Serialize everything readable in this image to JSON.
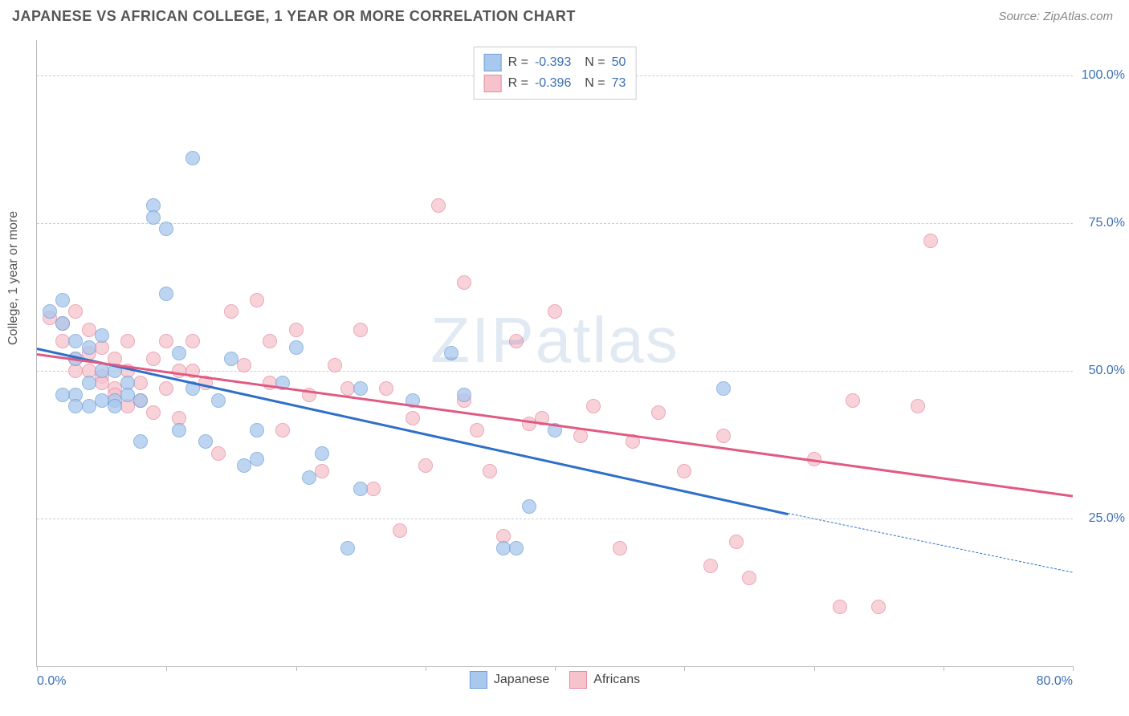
{
  "header": {
    "title": "JAPANESE VS AFRICAN COLLEGE, 1 YEAR OR MORE CORRELATION CHART",
    "source": "Source: ZipAtlas.com"
  },
  "watermark": "ZIPatlas",
  "chart": {
    "type": "scatter",
    "ylabel": "College, 1 year or more",
    "xlim": [
      0,
      80
    ],
    "ylim": [
      0,
      106
    ],
    "xticks": [
      0,
      10,
      20,
      30,
      40,
      50,
      60,
      70,
      80
    ],
    "xtick_labels": {
      "0": "0.0%",
      "80": "80.0%"
    },
    "yticks": [
      25,
      50,
      75,
      100
    ],
    "ytick_labels": {
      "25": "25.0%",
      "50": "50.0%",
      "75": "75.0%",
      "100": "100.0%"
    },
    "grid_color": "#cccccc",
    "background_color": "#ffffff",
    "series": {
      "japanese": {
        "label": "Japanese",
        "fill_color": "#a9c8ee",
        "stroke_color": "#6fa0d8",
        "line_color": "#2e6fc9",
        "R": "-0.393",
        "N": "50",
        "points": [
          [
            1,
            60
          ],
          [
            2,
            62
          ],
          [
            2,
            58
          ],
          [
            3,
            55
          ],
          [
            3,
            52
          ],
          [
            3,
            46
          ],
          [
            4,
            54
          ],
          [
            4,
            48
          ],
          [
            5,
            56
          ],
          [
            5,
            50
          ],
          [
            6,
            45
          ],
          [
            6,
            44
          ],
          [
            7,
            48
          ],
          [
            7,
            46
          ],
          [
            8,
            38
          ],
          [
            9,
            78
          ],
          [
            9,
            76
          ],
          [
            10,
            74
          ],
          [
            10,
            63
          ],
          [
            11,
            53
          ],
          [
            11,
            40
          ],
          [
            12,
            86
          ],
          [
            12,
            47
          ],
          [
            13,
            38
          ],
          [
            14,
            45
          ],
          [
            15,
            52
          ],
          [
            16,
            34
          ],
          [
            17,
            35
          ],
          [
            17,
            40
          ],
          [
            19,
            48
          ],
          [
            20,
            54
          ],
          [
            21,
            32
          ],
          [
            22,
            36
          ],
          [
            24,
            20
          ],
          [
            25,
            47
          ],
          [
            25,
            30
          ],
          [
            29,
            45
          ],
          [
            32,
            53
          ],
          [
            33,
            46
          ],
          [
            36,
            20
          ],
          [
            37,
            20
          ],
          [
            38,
            27
          ],
          [
            40,
            40
          ],
          [
            53,
            47
          ],
          [
            2,
            46
          ],
          [
            3,
            44
          ],
          [
            4,
            44
          ],
          [
            5,
            45
          ],
          [
            6,
            50
          ],
          [
            8,
            45
          ]
        ],
        "regression": {
          "x1": 0,
          "y1": 54,
          "x2": 58,
          "y2": 26,
          "dash_x2": 80,
          "dash_y2": 16
        }
      },
      "africans": {
        "label": "Africans",
        "fill_color": "#f6c3cd",
        "stroke_color": "#e78ba0",
        "line_color": "#e05a82",
        "R": "-0.396",
        "N": "73",
        "points": [
          [
            1,
            59
          ],
          [
            2,
            58
          ],
          [
            2,
            55
          ],
          [
            3,
            60
          ],
          [
            3,
            52
          ],
          [
            3,
            50
          ],
          [
            4,
            57
          ],
          [
            4,
            53
          ],
          [
            5,
            54
          ],
          [
            5,
            49
          ],
          [
            5,
            48
          ],
          [
            6,
            52
          ],
          [
            6,
            47
          ],
          [
            7,
            55
          ],
          [
            7,
            50
          ],
          [
            8,
            48
          ],
          [
            8,
            45
          ],
          [
            9,
            52
          ],
          [
            9,
            43
          ],
          [
            10,
            55
          ],
          [
            10,
            47
          ],
          [
            11,
            50
          ],
          [
            11,
            42
          ],
          [
            12,
            55
          ],
          [
            13,
            48
          ],
          [
            14,
            36
          ],
          [
            15,
            60
          ],
          [
            16,
            51
          ],
          [
            17,
            62
          ],
          [
            18,
            55
          ],
          [
            18,
            48
          ],
          [
            19,
            40
          ],
          [
            20,
            57
          ],
          [
            21,
            46
          ],
          [
            22,
            33
          ],
          [
            23,
            51
          ],
          [
            24,
            47
          ],
          [
            25,
            57
          ],
          [
            26,
            30
          ],
          [
            27,
            47
          ],
          [
            28,
            23
          ],
          [
            29,
            42
          ],
          [
            30,
            34
          ],
          [
            31,
            78
          ],
          [
            33,
            45
          ],
          [
            33,
            65
          ],
          [
            34,
            40
          ],
          [
            35,
            33
          ],
          [
            36,
            22
          ],
          [
            37,
            55
          ],
          [
            38,
            41
          ],
          [
            39,
            42
          ],
          [
            40,
            60
          ],
          [
            42,
            39
          ],
          [
            43,
            44
          ],
          [
            45,
            20
          ],
          [
            46,
            38
          ],
          [
            48,
            43
          ],
          [
            50,
            33
          ],
          [
            52,
            17
          ],
          [
            53,
            39
          ],
          [
            54,
            21
          ],
          [
            55,
            15
          ],
          [
            60,
            35
          ],
          [
            62,
            10
          ],
          [
            63,
            45
          ],
          [
            65,
            10
          ],
          [
            68,
            44
          ],
          [
            69,
            72
          ],
          [
            4,
            50
          ],
          [
            6,
            46
          ],
          [
            7,
            44
          ],
          [
            12,
            50
          ]
        ],
        "regression": {
          "x1": 0,
          "y1": 53,
          "x2": 80,
          "y2": 29
        }
      }
    }
  }
}
